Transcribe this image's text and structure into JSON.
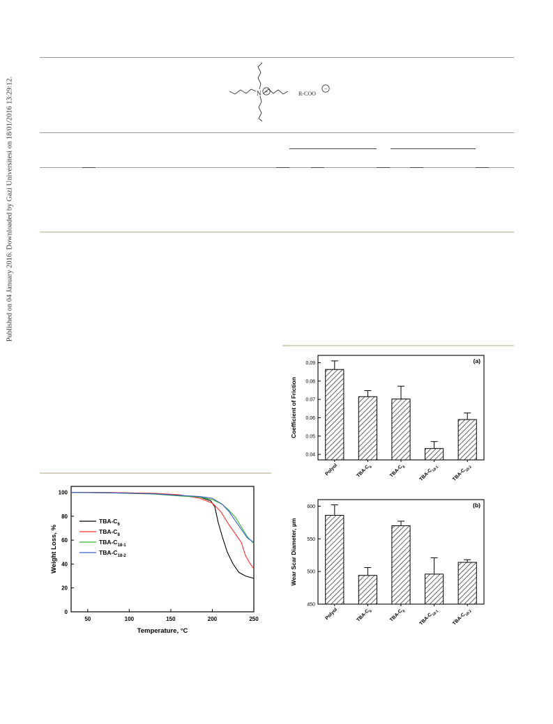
{
  "sidebar_note": "Published on 04 January 2016. Downloaded by Gazi Universitesi on 18/01/2016 13:29:12.",
  "structure": {
    "cation_atom": "N",
    "cation_charge": "+",
    "anion_label": "R-COO",
    "anion_charge": "−"
  },
  "chart_data": [
    {
      "id": "tga",
      "type": "line",
      "title": "",
      "xlabel": "Temperature, °C",
      "ylabel": "Weight Loss, %",
      "xlim": [
        30,
        250
      ],
      "ylim": [
        0,
        105
      ],
      "xticks": [
        50,
        100,
        150,
        200,
        250
      ],
      "yticks": [
        0,
        20,
        40,
        60,
        80,
        100
      ],
      "legend": "top-left",
      "series": [
        {
          "name": "TBA-C",
          "sub": "6",
          "color": "#000000",
          "x": [
            30,
            80,
            130,
            160,
            185,
            198,
            203,
            207,
            212,
            218,
            225,
            232,
            240,
            250
          ],
          "y": [
            100,
            99.8,
            99,
            97.5,
            96,
            93,
            88,
            75,
            63,
            50,
            40,
            33,
            30,
            28
          ]
        },
        {
          "name": "TBA-C",
          "sub": "8",
          "color": "#ff2a2a",
          "x": [
            30,
            80,
            130,
            160,
            185,
            200,
            210,
            220,
            230,
            235,
            240,
            245,
            250
          ],
          "y": [
            100,
            99.8,
            99.2,
            98,
            95,
            91,
            84,
            73,
            63,
            58,
            47,
            41,
            36
          ]
        },
        {
          "name": "TBA-C",
          "sub": "18-1",
          "color": "#33b533",
          "x": [
            30,
            80,
            130,
            160,
            185,
            200,
            212,
            220,
            228,
            235,
            242,
            250
          ],
          "y": [
            100,
            99.5,
            98.5,
            97,
            96,
            94,
            90,
            85,
            79,
            71,
            63,
            57
          ]
        },
        {
          "name": "TBA-C",
          "sub": "18-2",
          "color": "#3b5ecc",
          "x": [
            30,
            80,
            130,
            160,
            185,
            200,
            212,
            220,
            228,
            235,
            242,
            250
          ],
          "y": [
            100,
            99.6,
            98.8,
            97.5,
            96.5,
            95,
            90,
            84,
            76,
            69,
            62,
            58
          ]
        }
      ]
    },
    {
      "id": "cof",
      "type": "bar",
      "panel_label": "(a)",
      "ylabel": "Coefficient of Friction",
      "ylim": [
        0.037,
        0.094
      ],
      "yticks": [
        0.04,
        0.05,
        0.06,
        0.07,
        0.08,
        0.09
      ],
      "yticklabels": [
        "0.04",
        "0.05",
        "0.06",
        "0.07",
        "0.08",
        "0.09"
      ],
      "categories": [
        {
          "main": "Polyol",
          "sub": ""
        },
        {
          "main": "TBA-C",
          "sub": "6"
        },
        {
          "main": "TBA-C",
          "sub": "8"
        },
        {
          "main": "TBA-C",
          "sub": "18-1"
        },
        {
          "main": "TBA-C",
          "sub": "18-2"
        }
      ],
      "values": [
        0.0863,
        0.0715,
        0.0702,
        0.0432,
        0.059
      ],
      "errors": [
        0.0047,
        0.0033,
        0.007,
        0.0038,
        0.0036
      ]
    },
    {
      "id": "wsd",
      "type": "bar",
      "panel_label": "(b)",
      "ylabel": "Wear Scar Diameter, µm",
      "ylim": [
        450,
        610
      ],
      "yticks": [
        450,
        500,
        550,
        600
      ],
      "yticklabels": [
        "450",
        "500",
        "550",
        "600"
      ],
      "categories": [
        {
          "main": "Polyol",
          "sub": ""
        },
        {
          "main": "TBA-C",
          "sub": "6"
        },
        {
          "main": "TBA-C",
          "sub": "8"
        },
        {
          "main": "TBA-C",
          "sub": "18-1"
        },
        {
          "main": "TBA-C",
          "sub": "18-2"
        }
      ],
      "values": [
        586,
        494,
        570,
        496,
        514
      ],
      "errors": [
        16,
        12,
        7,
        25,
        4
      ]
    }
  ]
}
